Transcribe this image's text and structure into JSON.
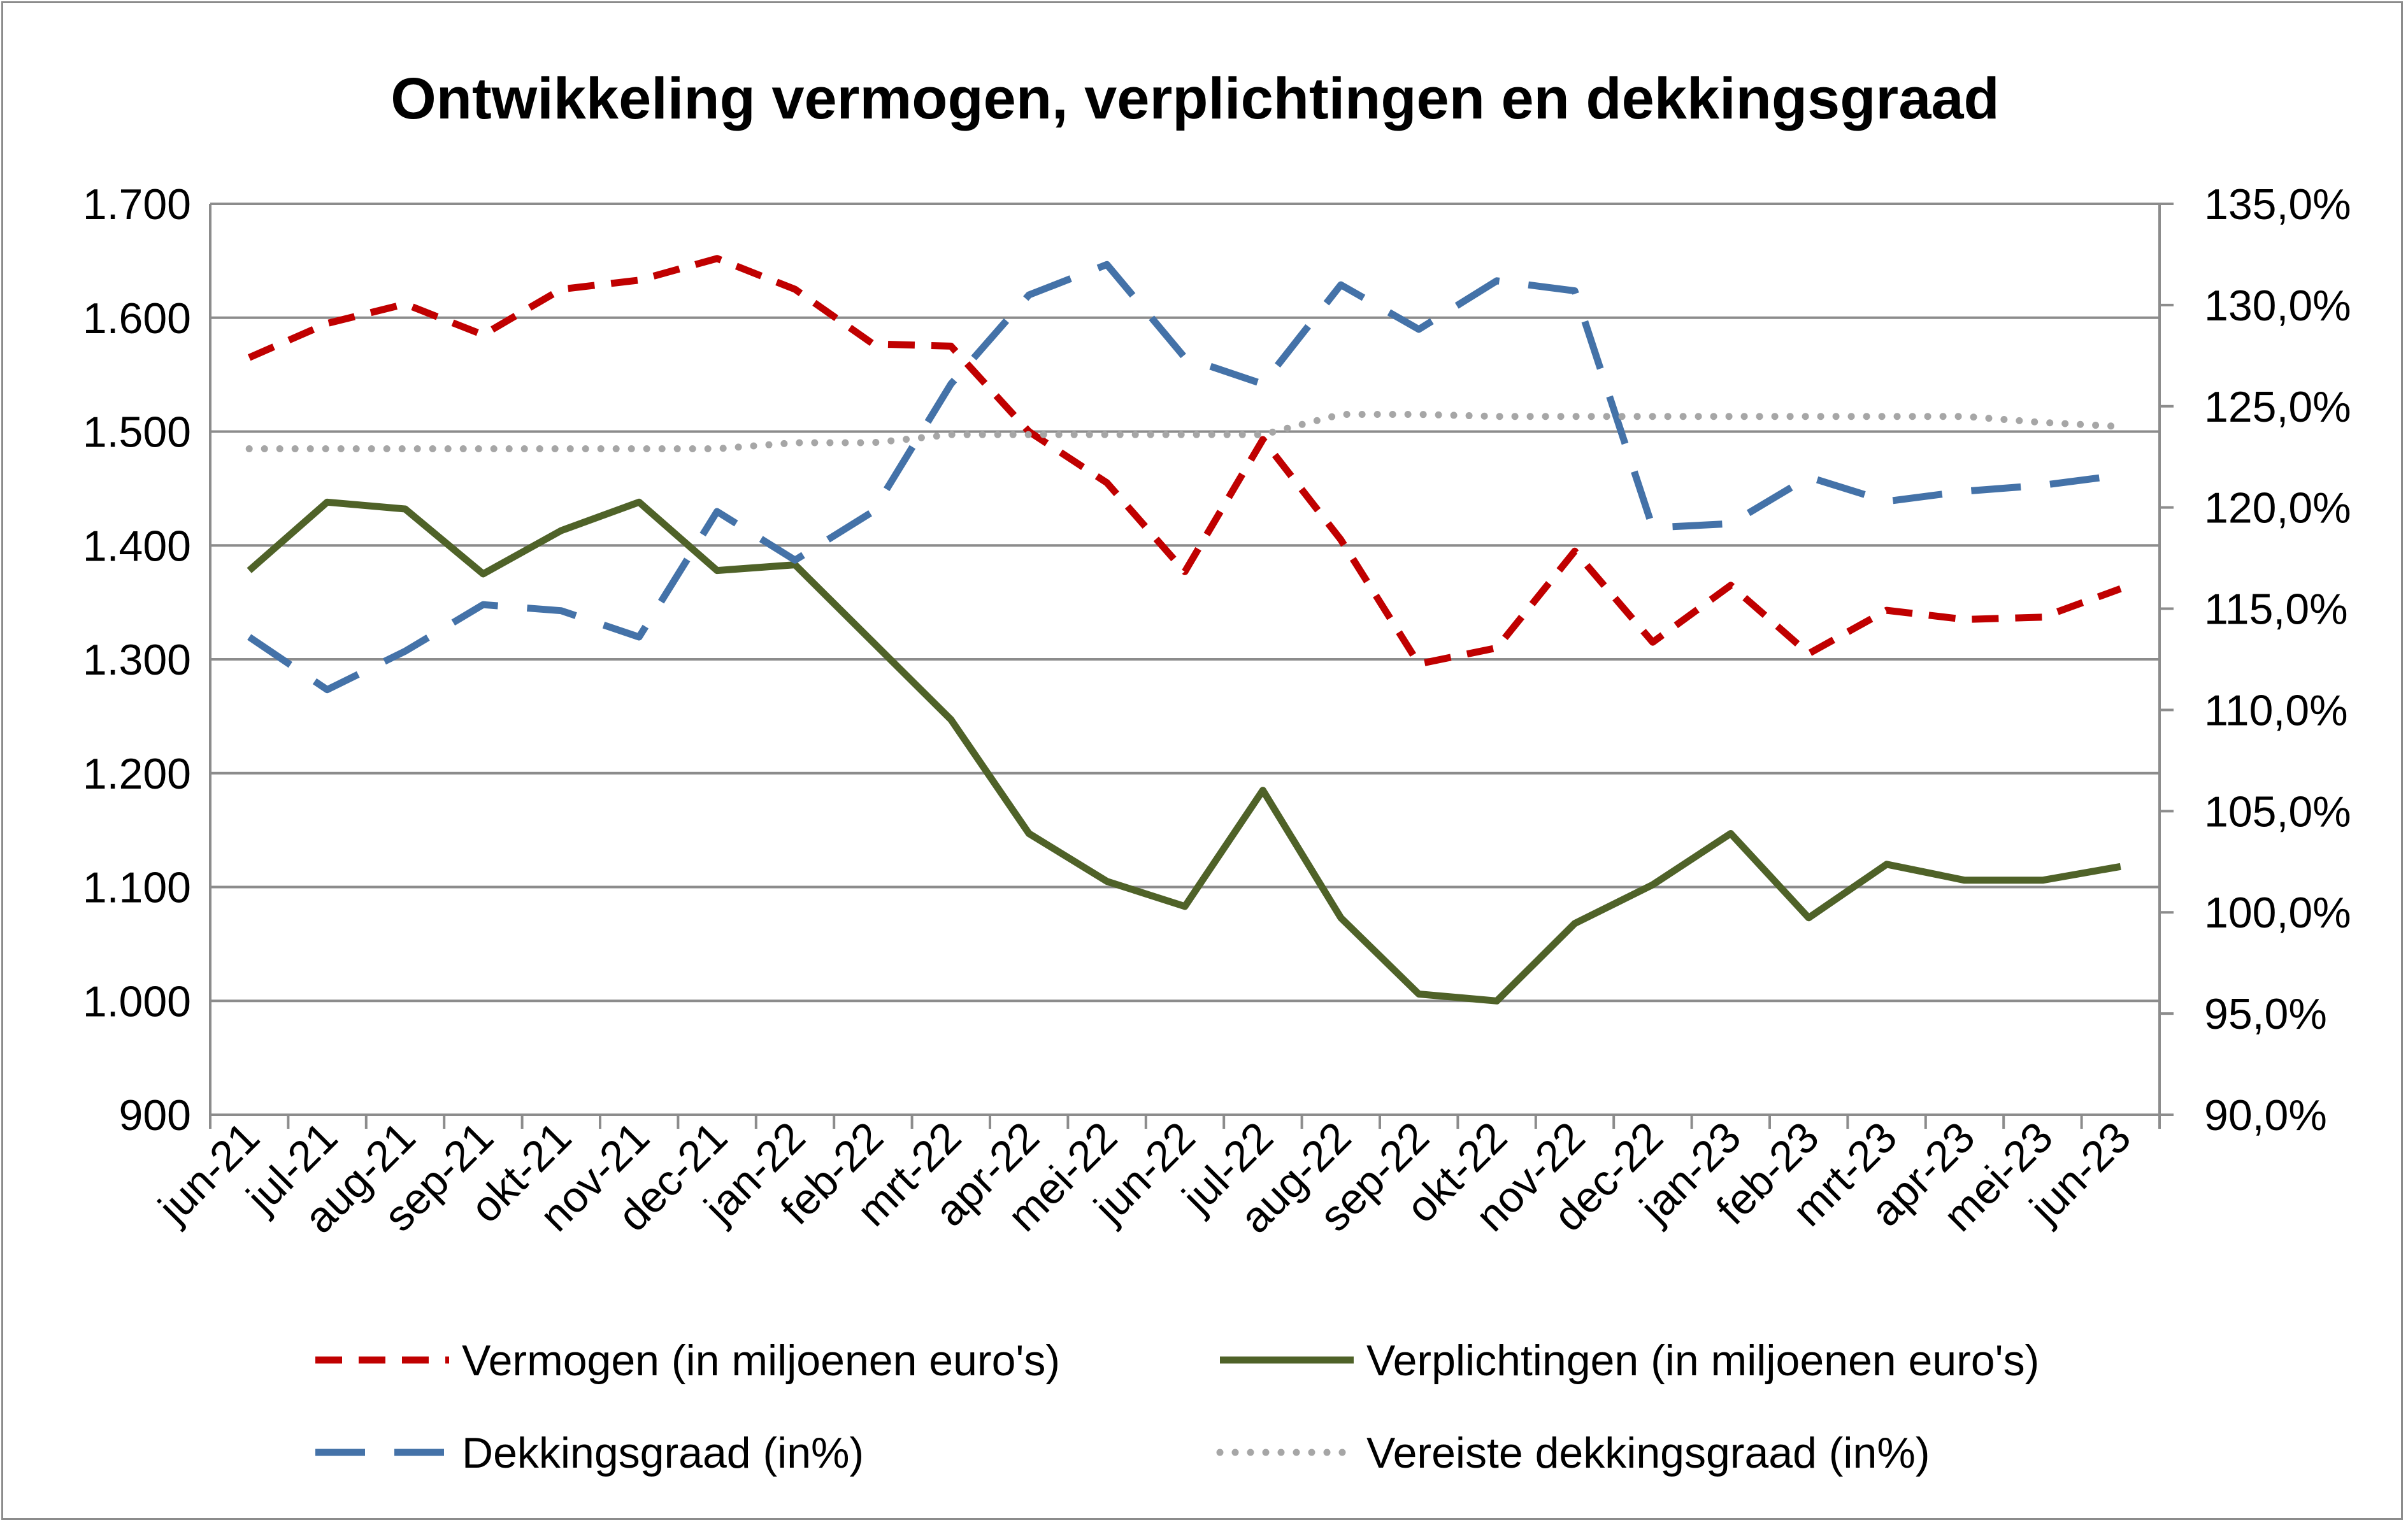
{
  "chart_data": {
    "type": "line",
    "title": "Ontwikkeling vermogen, verplichtingen en dekkingsgraad",
    "categories": [
      "jun-21",
      "jul-21",
      "aug-21",
      "sep-21",
      "okt-21",
      "nov-21",
      "dec-21",
      "jan-22",
      "feb-22",
      "mrt-22",
      "apr-22",
      "mei-22",
      "jun-22",
      "jul-22",
      "aug-22",
      "sep-22",
      "okt-22",
      "nov-22",
      "dec-22",
      "jan-23",
      "feb-23",
      "mrt-23",
      "apr-23",
      "mei-23",
      "jun-23"
    ],
    "y_left": {
      "min": 900,
      "max": 1700,
      "step": 100,
      "tick_labels": [
        "900",
        "1.000",
        "1.100",
        "1.200",
        "1.300",
        "1.400",
        "1.500",
        "1.600",
        "1.700"
      ]
    },
    "y_right": {
      "min": 90,
      "max": 135,
      "step": 5,
      "tick_labels": [
        "90,0%",
        "95,0%",
        "100,0%",
        "105,0%",
        "110,0%",
        "115,0%",
        "120,0%",
        "125,0%",
        "130,0%",
        "135,0%"
      ]
    },
    "grid": true,
    "legend_position": "bottom",
    "series": [
      {
        "name": "Vermogen (in miljoenen euro's)",
        "axis": "left",
        "color": "#C00000",
        "style": "dash",
        "values": [
          1565,
          1595,
          1612,
          1585,
          1625,
          1633,
          1652,
          1625,
          1577,
          1575,
          1500,
          1455,
          1377,
          1493,
          1405,
          1296,
          1310,
          1395,
          1315,
          1365,
          1305,
          1343,
          1335,
          1337,
          1362
        ]
      },
      {
        "name": "Verplichtingen (in miljoenen euro's)",
        "axis": "left",
        "color": "#4F6228",
        "style": "solid",
        "values": [
          1378,
          1438,
          1432,
          1375,
          1413,
          1438,
          1378,
          1383,
          1315,
          1247,
          1147,
          1105,
          1083,
          1185,
          1073,
          1006,
          1000,
          1068,
          1102,
          1147,
          1073,
          1120,
          1106,
          1106,
          1118
        ]
      },
      {
        "name": "Dekkingsgraad (in%)",
        "axis": "right",
        "color": "#4472A8",
        "style": "longdash",
        "values": [
          113.6,
          111.0,
          112.9,
          115.2,
          114.9,
          113.6,
          119.8,
          117.4,
          119.8,
          126.1,
          130.5,
          132.0,
          127.4,
          126.1,
          131.0,
          128.8,
          131.2,
          130.7,
          119.0,
          119.2,
          121.5,
          120.3,
          120.8,
          121.1,
          121.6
        ]
      },
      {
        "name": "Vereiste dekkingsgraad (in%)",
        "axis": "right",
        "color": "#A6A6A6",
        "style": "dot",
        "values": [
          122.9,
          122.9,
          122.9,
          122.9,
          122.9,
          122.9,
          122.9,
          123.2,
          123.2,
          123.6,
          123.6,
          123.6,
          123.6,
          123.6,
          124.6,
          124.6,
          124.5,
          124.5,
          124.5,
          124.5,
          124.5,
          124.5,
          124.5,
          124.2,
          124.0
        ]
      }
    ]
  }
}
